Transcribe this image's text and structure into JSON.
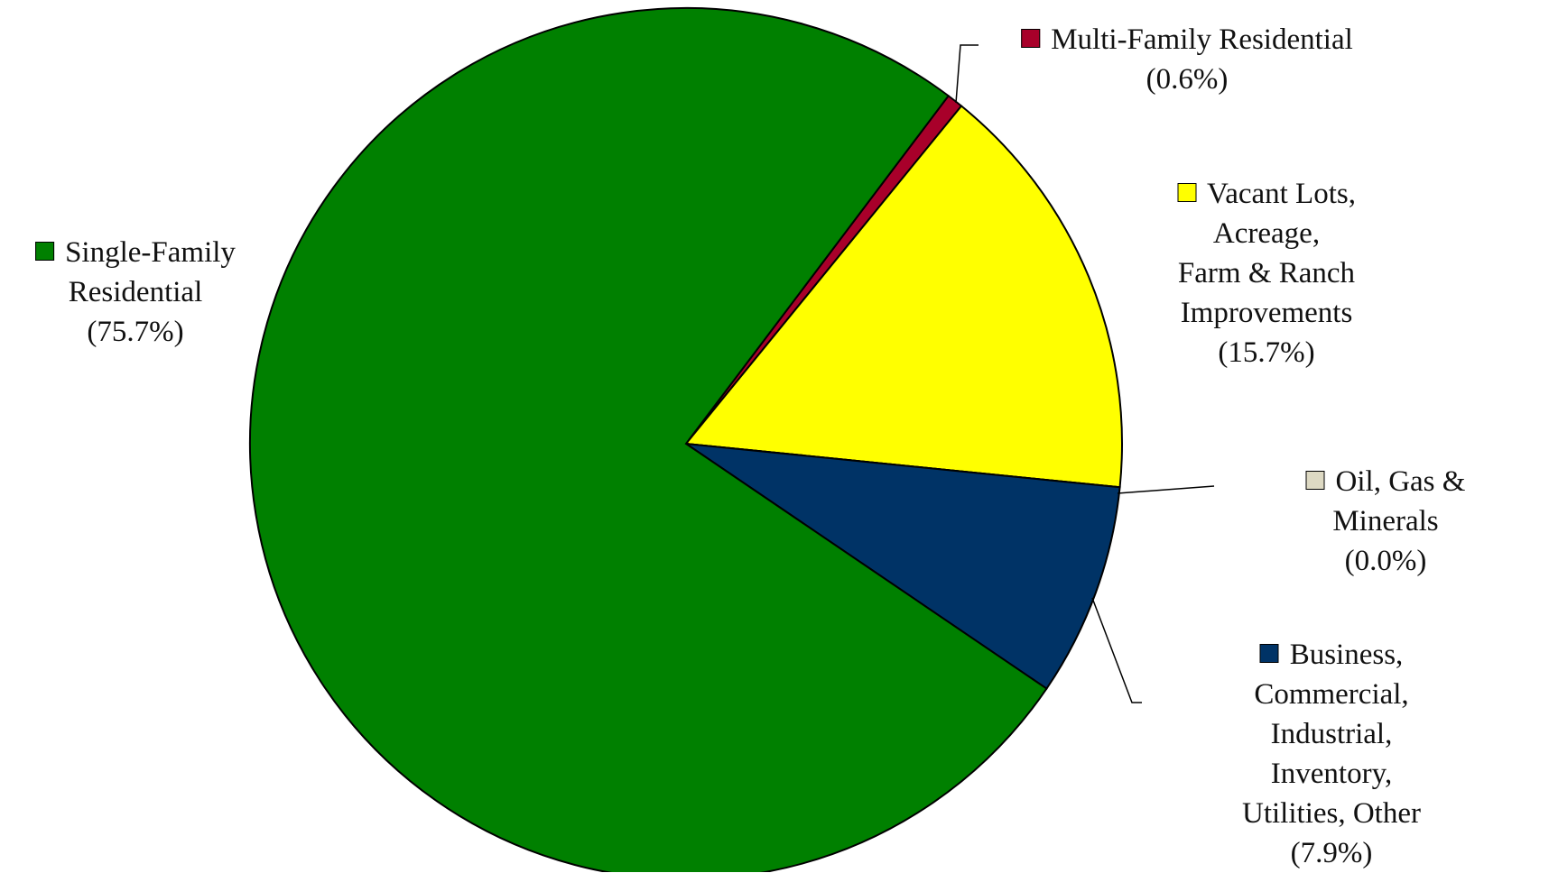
{
  "chart_data": {
    "type": "pie",
    "categories": [
      "Multi-Family Residential",
      "Vacant Lots, Acreage,\nFarm & Ranch\nImprovements",
      "Oil, Gas & Minerals",
      "Business, Commercial,\nIndustrial, Inventory,\nUtilities, Other",
      "Single-Family\nResidential"
    ],
    "values": [
      0.6,
      15.7,
      0.0,
      7.9,
      75.7
    ],
    "value_labels": [
      "(0.6%)",
      "(15.7%)",
      "(0.0%)",
      "(7.9%)",
      "(75.7%)"
    ],
    "colors": [
      "#a8002a",
      "#ffff00",
      "#ddd9c3",
      "#003366",
      "#008000"
    ]
  }
}
